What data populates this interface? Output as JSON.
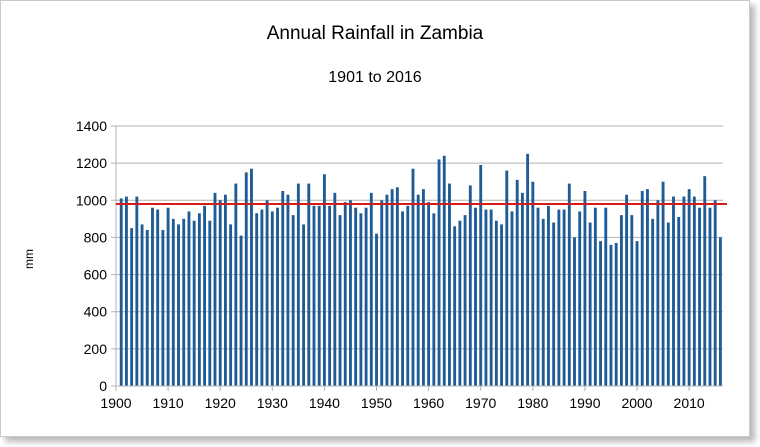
{
  "chart_data": {
    "type": "bar",
    "title": "Annual Rainfall in Zambia",
    "subtitle": "1901 to 2016",
    "xlabel": "",
    "ylabel": "mm",
    "ylim": [
      0,
      1400
    ],
    "y_ticks": [
      0,
      200,
      400,
      600,
      800,
      1000,
      1200,
      1400
    ],
    "xlim": [
      1900,
      2016.5
    ],
    "x_ticks": [
      1900,
      1910,
      1920,
      1930,
      1940,
      1950,
      1960,
      1970,
      1980,
      1990,
      2000,
      2010
    ],
    "grid": "horizontal",
    "legend": "none",
    "x": [
      1901,
      1902,
      1903,
      1904,
      1905,
      1906,
      1907,
      1908,
      1909,
      1910,
      1911,
      1912,
      1913,
      1914,
      1915,
      1916,
      1917,
      1918,
      1919,
      1920,
      1921,
      1922,
      1923,
      1924,
      1925,
      1926,
      1927,
      1928,
      1929,
      1930,
      1931,
      1932,
      1933,
      1934,
      1935,
      1936,
      1937,
      1938,
      1939,
      1940,
      1941,
      1942,
      1943,
      1944,
      1945,
      1946,
      1947,
      1948,
      1949,
      1950,
      1951,
      1952,
      1953,
      1954,
      1955,
      1956,
      1957,
      1958,
      1959,
      1960,
      1961,
      1962,
      1963,
      1964,
      1965,
      1966,
      1967,
      1968,
      1969,
      1970,
      1971,
      1972,
      1973,
      1974,
      1975,
      1976,
      1977,
      1978,
      1979,
      1980,
      1981,
      1982,
      1983,
      1984,
      1985,
      1986,
      1987,
      1988,
      1989,
      1990,
      1991,
      1992,
      1993,
      1994,
      1995,
      1996,
      1997,
      1998,
      1999,
      2000,
      2001,
      2002,
      2003,
      2004,
      2005,
      2006,
      2007,
      2008,
      2009,
      2010,
      2011,
      2012,
      2013,
      2014,
      2015,
      2016
    ],
    "series": [
      {
        "values": [
          1010,
          1020,
          850,
          1020,
          870,
          840,
          960,
          950,
          840,
          960,
          900,
          870,
          900,
          940,
          890,
          930,
          970,
          890,
          1040,
          1000,
          1030,
          870,
          1090,
          810,
          1150,
          1170,
          930,
          950,
          1000,
          940,
          960,
          1050,
          1030,
          920,
          1090,
          870,
          1090,
          970,
          970,
          1140,
          970,
          1040,
          920,
          990,
          1000,
          960,
          930,
          960,
          1040,
          820,
          1000,
          1030,
          1060,
          1070,
          940,
          970,
          1170,
          1030,
          1060,
          990,
          930,
          1220,
          1240,
          1090,
          860,
          890,
          920,
          1080,
          960,
          1190,
          950,
          950,
          890,
          870,
          1160,
          940,
          1110,
          1040,
          1250,
          1100,
          960,
          900,
          970,
          880,
          950,
          950,
          1090,
          800,
          940,
          1050,
          880,
          960,
          780,
          960,
          760,
          770,
          920,
          1030,
          920,
          780,
          1050,
          1060,
          900,
          1000,
          1100,
          880,
          1020,
          910,
          1020,
          1060,
          1020,
          960,
          1130,
          960,
          1000,
          800
        ],
        "color": "#1f5b95"
      }
    ],
    "reference_line": {
      "value": 980,
      "color": "#d41c1c"
    },
    "colors": {
      "axis": "#b3b3b3",
      "grid": "#b3b3b3",
      "text": "#000000"
    }
  }
}
